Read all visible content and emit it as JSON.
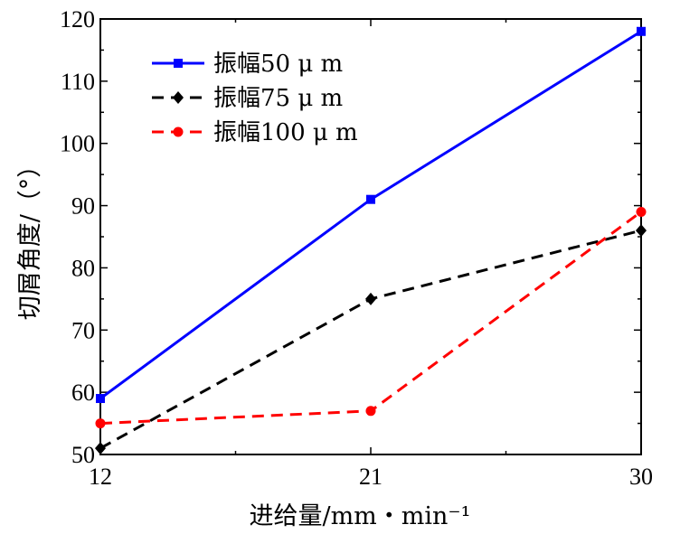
{
  "chart_data": {
    "type": "line",
    "title": "",
    "xlabel": "进给量/mm・min⁻¹",
    "ylabel": "切屑角度/（°）",
    "x": [
      12,
      21,
      30
    ],
    "xticks": [
      "12",
      "21",
      "30"
    ],
    "xlim": [
      12,
      30
    ],
    "ylim": [
      50,
      120
    ],
    "yticks": [
      "50",
      "60",
      "70",
      "80",
      "90",
      "100",
      "110",
      "120"
    ],
    "grid": false,
    "legend_position": "top-left",
    "series": [
      {
        "name": "振幅50 μ m",
        "values": [
          59,
          91,
          118
        ],
        "color": "#0000ff",
        "marker": "square",
        "line_style": "solid"
      },
      {
        "name": "振幅75 μ m",
        "values": [
          51,
          75,
          86
        ],
        "color": "#000000",
        "marker": "diamond",
        "line_style": "dashed"
      },
      {
        "name": "振幅100 μ m",
        "values": [
          55,
          57,
          89
        ],
        "color": "#ff0000",
        "marker": "circle",
        "line_style": "dashed"
      }
    ]
  }
}
